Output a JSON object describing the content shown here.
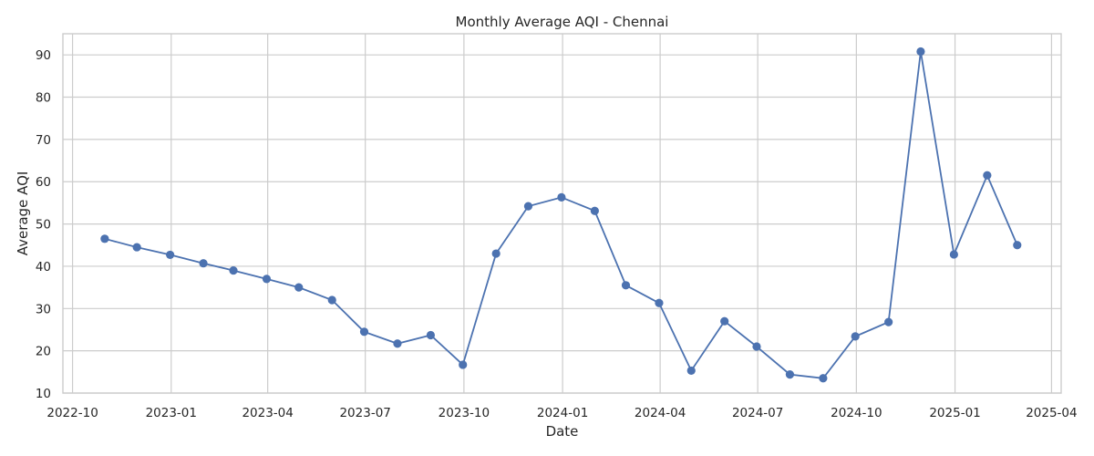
{
  "chart_data": {
    "type": "line",
    "title": "Monthly Average AQI - Chennai",
    "xlabel": "Date",
    "ylabel": "Average AQI",
    "x_ticks": [
      "2022-10",
      "2023-01",
      "2023-04",
      "2023-07",
      "2023-10",
      "2024-01",
      "2024-04",
      "2024-07",
      "2024-10",
      "2025-01",
      "2025-04"
    ],
    "y_ticks": [
      10,
      20,
      30,
      40,
      50,
      60,
      70,
      80,
      90
    ],
    "xlim": [
      "2022-09-22",
      "2025-04-10"
    ],
    "ylim": [
      10,
      95
    ],
    "grid": true,
    "series": [
      {
        "color": "#4c72b0",
        "marker": "circle",
        "x": [
          "2022-10-31",
          "2022-11-30",
          "2022-12-31",
          "2023-01-31",
          "2023-02-28",
          "2023-03-31",
          "2023-04-30",
          "2023-05-31",
          "2023-06-30",
          "2023-07-31",
          "2023-08-31",
          "2023-09-30",
          "2023-10-31",
          "2023-11-30",
          "2023-12-31",
          "2024-01-31",
          "2024-02-29",
          "2024-03-31",
          "2024-04-30",
          "2024-05-31",
          "2024-06-30",
          "2024-07-31",
          "2024-08-31",
          "2024-09-30",
          "2024-10-31",
          "2024-11-30",
          "2024-12-31",
          "2025-01-31",
          "2025-02-28"
        ],
        "y": [
          46.5,
          44.5,
          42.7,
          40.7,
          39.0,
          37.0,
          35.0,
          32.0,
          24.5,
          21.7,
          23.7,
          16.7,
          43.0,
          54.2,
          56.3,
          53.1,
          35.5,
          31.3,
          15.3,
          27.0,
          21.0,
          14.4,
          13.5,
          23.4,
          26.8,
          90.8,
          42.8,
          61.5,
          45.0
        ]
      }
    ]
  }
}
